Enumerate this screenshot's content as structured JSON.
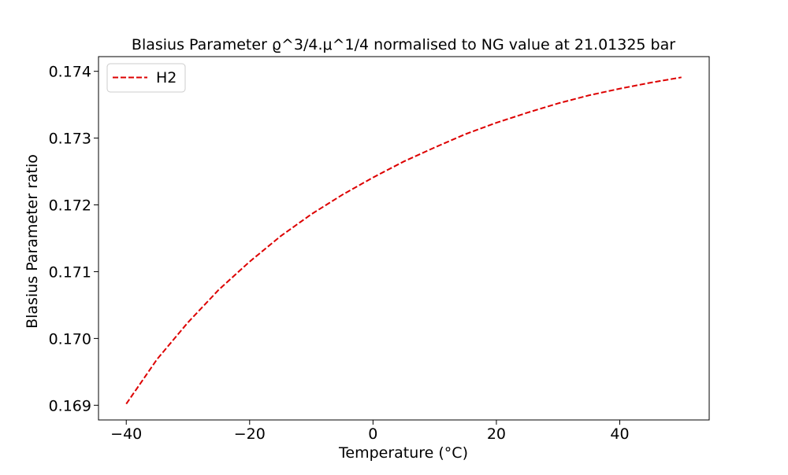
{
  "chart_data": {
    "type": "line",
    "title": "Blasius Parameter ϱ^3/4.μ^1/4  normalised to NG value at 21.01325 bar",
    "xlabel": "Temperature (°C)",
    "ylabel": "Blasius Parameter ratio",
    "xlim": [
      -44.5,
      54.5
    ],
    "ylim": [
      0.16878,
      0.17422
    ],
    "xticks": [
      -40,
      -20,
      0,
      20,
      40
    ],
    "xtick_labels": [
      "−40",
      "−20",
      "0",
      "20",
      "40"
    ],
    "yticks": [
      0.169,
      0.17,
      0.171,
      0.172,
      0.173,
      0.174
    ],
    "ytick_labels": [
      "0.169",
      "0.170",
      "0.171",
      "0.172",
      "0.173",
      "0.174"
    ],
    "grid": false,
    "legend_position": "upper-left",
    "series": [
      {
        "name": "H2",
        "color": "#dd0000",
        "line_style": "dashed",
        "x": [
          -40,
          -35,
          -30,
          -25,
          -20,
          -15,
          -10,
          -5,
          0,
          5,
          10,
          15,
          20,
          25,
          30,
          35,
          40,
          45,
          50
        ],
        "y": [
          0.16902,
          0.16969,
          0.17024,
          0.17073,
          0.17115,
          0.17153,
          0.17186,
          0.17215,
          0.17241,
          0.17265,
          0.17286,
          0.17306,
          0.17323,
          0.17338,
          0.17352,
          0.17364,
          0.17374,
          0.17383,
          0.17391
        ]
      }
    ]
  }
}
